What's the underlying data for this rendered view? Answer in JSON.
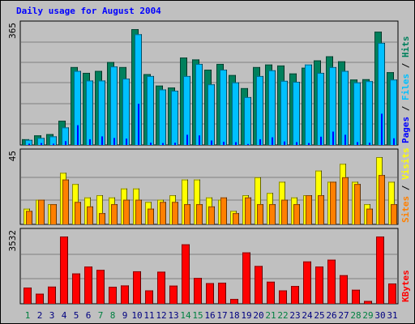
{
  "chart_data": [
    {
      "type": "bar",
      "title": "Daily usage for August 2004",
      "panel": "hits-files-pages",
      "ymax_label": "365",
      "legend": [
        "Pages",
        "Files",
        "Hits"
      ],
      "legend_separator": " / ",
      "colors": {
        "Hits": "#00805c",
        "Files": "#00c0ff",
        "Pages": "#0000ff"
      },
      "x": [
        1,
        2,
        3,
        4,
        5,
        6,
        7,
        8,
        9,
        10,
        11,
        12,
        13,
        14,
        15,
        16,
        17,
        18,
        19,
        20,
        21,
        22,
        23,
        24,
        25,
        26,
        27,
        28,
        29,
        30,
        31
      ],
      "series": [
        {
          "name": "Hits",
          "values": [
            18,
            30,
            34,
            76,
            244,
            226,
            232,
            260,
            244,
            363,
            222,
            186,
            180,
            274,
            268,
            236,
            254,
            219,
            178,
            244,
            252,
            249,
            224,
            242,
            265,
            278,
            262,
            205,
            206,
            355,
            228
          ]
        },
        {
          "name": "Files",
          "values": [
            16,
            22,
            27,
            55,
            232,
            202,
            202,
            246,
            208,
            347,
            216,
            174,
            170,
            216,
            254,
            190,
            236,
            196,
            150,
            216,
            234,
            201,
            198,
            252,
            226,
            244,
            232,
            196,
            200,
            320,
            205
          ]
        },
        {
          "name": "Pages",
          "values": [
            4,
            6,
            4,
            12,
            62,
            18,
            27,
            22,
            20,
            129,
            7,
            6,
            7,
            32,
            30,
            14,
            10,
            9,
            3,
            18,
            24,
            11,
            9,
            6,
            26,
            42,
            32,
            9,
            7,
            98,
            21
          ]
        }
      ]
    },
    {
      "type": "bar",
      "panel": "visits-sites",
      "ymax_label": "45",
      "legend": [
        "Sites",
        "Visits"
      ],
      "legend_separator": " / ",
      "colors": {
        "Visits": "#ffff00",
        "Sites": "#ff8000"
      },
      "x": [
        1,
        2,
        3,
        4,
        5,
        6,
        7,
        8,
        9,
        10,
        11,
        12,
        13,
        14,
        15,
        16,
        17,
        18,
        19,
        20,
        21,
        22,
        23,
        24,
        25,
        26,
        27,
        28,
        29,
        30,
        31
      ],
      "series": [
        {
          "name": "Visits",
          "values": [
            7,
            11,
            9,
            23,
            18,
            12,
            13,
            12,
            16,
            16,
            10,
            11,
            13,
            20,
            20,
            12,
            11,
            6,
            13,
            21,
            14,
            19,
            12,
            13,
            24,
            19,
            27,
            19,
            9,
            30,
            19
          ]
        },
        {
          "name": "Sites",
          "values": [
            6,
            11,
            9,
            20,
            10,
            8,
            5,
            9,
            11,
            11,
            7,
            10,
            10,
            9,
            9,
            8,
            12,
            5,
            12,
            9,
            9,
            11,
            9,
            13,
            13,
            19,
            21,
            18,
            7,
            22,
            9
          ]
        }
      ]
    },
    {
      "type": "bar",
      "panel": "kbytes",
      "ymax_label": "3532",
      "legend": [
        "KBytes"
      ],
      "colors": {
        "KBytes": "#ff0000"
      },
      "x": [
        1,
        2,
        3,
        4,
        5,
        6,
        7,
        8,
        9,
        10,
        11,
        12,
        13,
        14,
        15,
        16,
        17,
        18,
        19,
        20,
        21,
        22,
        23,
        24,
        25,
        26,
        27,
        28,
        29,
        30,
        31
      ],
      "series": [
        {
          "name": "KBytes",
          "values": [
            820,
            510,
            870,
            3420,
            1540,
            1890,
            1720,
            860,
            930,
            1650,
            680,
            1630,
            920,
            3020,
            1310,
            1050,
            1070,
            240,
            2610,
            1920,
            1120,
            680,
            900,
            2150,
            1890,
            2240,
            1450,
            710,
            140,
            3420,
            1030
          ]
        }
      ]
    }
  ],
  "x_axis": {
    "labels": [
      "1",
      "2",
      "3",
      "4",
      "5",
      "6",
      "7",
      "8",
      "9",
      "10",
      "11",
      "12",
      "13",
      "14",
      "15",
      "16",
      "17",
      "18",
      "19",
      "20",
      "21",
      "22",
      "23",
      "24",
      "25",
      "26",
      "27",
      "28",
      "29",
      "30",
      "31"
    ],
    "weekend_days": [
      1,
      7,
      8,
      14,
      15,
      21,
      22,
      28,
      29
    ],
    "weekday_color": "#000080",
    "weekend_color": "#008040"
  }
}
